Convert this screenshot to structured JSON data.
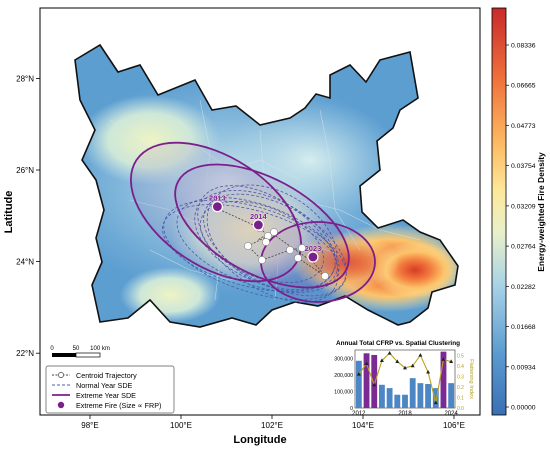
{
  "axes": {
    "xlabel": "Longitude",
    "ylabel": "Latitude",
    "x_ticks": [
      "98°E",
      "100°E",
      "102°E",
      "104°E",
      "106°E"
    ],
    "y_ticks": [
      "28°N",
      "26°N",
      "24°N",
      "22°N"
    ]
  },
  "colorbar": {
    "label": "Energy-weighted Fire Density",
    "ticks": [
      "0.08336",
      "0.06665",
      "0.04773",
      "0.03754",
      "0.03209",
      "0.02764",
      "0.02282",
      "0.01668",
      "0.00934",
      "0.00000"
    ]
  },
  "scalebar": {
    "labels": [
      "0",
      "50",
      "100 km"
    ]
  },
  "extreme_years": [
    {
      "label": "2013",
      "lon": 100.8,
      "lat": 25.2
    },
    {
      "label": "2014",
      "lon": 101.7,
      "lat": 24.8
    },
    {
      "label": "2023",
      "lon": 102.9,
      "lat": 24.1
    }
  ],
  "legend": {
    "items": [
      {
        "label": "Centroid Trajectory",
        "icon": "line-circle-icon"
      },
      {
        "label": "Normal Year SDE",
        "icon": "dashed-line-icon"
      },
      {
        "label": "Extreme Year SDE",
        "icon": "solid-line-icon"
      },
      {
        "label": "Extreme Fire (Size ∝ FRP)",
        "icon": "purple-dot-icon"
      }
    ]
  },
  "inset": {
    "title": "Annual Total CFRP vs. Spatial Clustering",
    "y_ticks": [
      "300,000",
      "200,000",
      "100,000",
      "0"
    ],
    "y2_label": "Flattening Index",
    "y2_ticks": [
      "0.5",
      "0.4",
      "0.3",
      "0.2",
      "0.1",
      "0.0"
    ],
    "x_ticks": [
      "2012",
      "2018",
      "2024"
    ]
  },
  "chart_data": {
    "type": "bar",
    "title": "Annual Total CFRP vs. Spatial Clustering",
    "categories": [
      "2012",
      "2013",
      "2014",
      "2015",
      "2016",
      "2017",
      "2018",
      "2019",
      "2020",
      "2021",
      "2022",
      "2023",
      "2024"
    ],
    "series": [
      {
        "values": [
          285000,
          330000,
          320000,
          140000,
          120000,
          80000,
          80000,
          180000,
          150000,
          145000,
          120000,
          340000,
          150000
        ]
      },
      {
        "name": "Flattening Index",
        "values": [
          0.32,
          0.42,
          0.22,
          0.45,
          0.52,
          0.44,
          0.38,
          0.4,
          0.5,
          0.34,
          0.05,
          0.46,
          0.44
        ]
      }
    ],
    "highlighted_categories": [
      "2013",
      "2014",
      "2023"
    ],
    "ylim": [
      0,
      350000
    ],
    "y2lim": [
      0.0,
      0.55
    ]
  },
  "colors": {
    "extreme": "#7b1f8a",
    "normal_dash": "#4a5fa8",
    "bar_normal": "#4d86c5",
    "bar_extreme": "#7b2a93",
    "line": "#b8a21c"
  }
}
